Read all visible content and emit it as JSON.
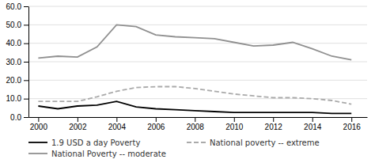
{
  "chart_data": {
    "type": "line",
    "x": [
      2000,
      2001,
      2002,
      2003,
      2004,
      2005,
      2006,
      2007,
      2008,
      2009,
      2010,
      2011,
      2012,
      2013,
      2014,
      2015,
      2016
    ],
    "series": [
      {
        "name": "1.9 USD a day Poverty",
        "color": "#000000",
        "line_style": "solid",
        "values": [
          6.0,
          4.5,
          6.0,
          6.5,
          8.5,
          5.5,
          4.5,
          4.0,
          3.5,
          3.0,
          2.5,
          2.5,
          2.5,
          2.5,
          2.5,
          2.0,
          2.0
        ]
      },
      {
        "name": "National poverty -- extreme",
        "color": "#aaaaaa",
        "line_style": "dashed",
        "values": [
          8.5,
          8.5,
          8.5,
          11.0,
          14.0,
          16.0,
          16.5,
          16.5,
          15.5,
          14.0,
          12.5,
          11.5,
          10.5,
          10.5,
          10.0,
          9.0,
          7.0
        ]
      },
      {
        "name": "National Poverty -- moderate",
        "color": "#909090",
        "line_style": "solid",
        "values": [
          32.0,
          33.0,
          32.5,
          38.0,
          50.0,
          49.0,
          44.5,
          43.5,
          43.0,
          42.5,
          40.5,
          38.5,
          39.0,
          40.5,
          37.0,
          33.0,
          31.0
        ]
      }
    ],
    "xlim": [
      1999.5,
      2016.8
    ],
    "xticks": [
      2000,
      2002,
      2004,
      2006,
      2008,
      2010,
      2012,
      2014,
      2016
    ],
    "ylim": [
      0.0,
      60.0
    ],
    "yticks": [
      {
        "value": 0.0,
        "label": "0.0"
      },
      {
        "value": 10.0,
        "label": "10.0"
      },
      {
        "value": 20.0,
        "label": "20.0"
      },
      {
        "value": 30.0,
        "label": "30.0"
      },
      {
        "value": 40.0,
        "label": "40.0"
      },
      {
        "value": 50.0,
        "label": "50.0"
      },
      {
        "value": 60.0,
        "label": "60.0"
      }
    ],
    "grid": "y",
    "legend": "bottom"
  }
}
